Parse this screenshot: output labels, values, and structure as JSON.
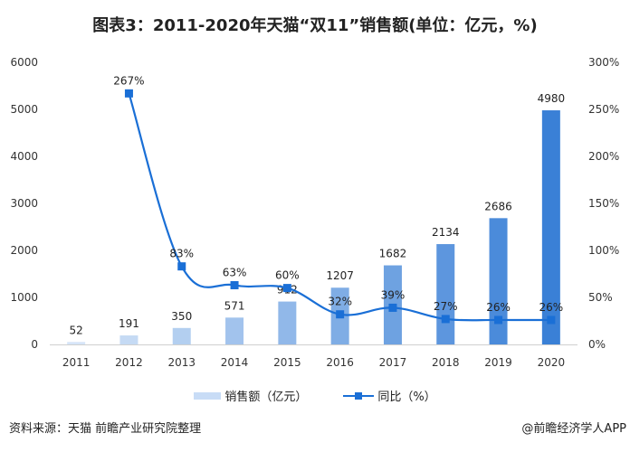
{
  "chart_data": {
    "type": "bar+line",
    "title": "图表3：2011-2020年天猫“双11”销售额(单位：亿元，%)",
    "categories": [
      "2011",
      "2012",
      "2013",
      "2014",
      "2015",
      "2016",
      "2017",
      "2018",
      "2019",
      "2020"
    ],
    "series": [
      {
        "name": "销售额（亿元）",
        "type": "bar",
        "axis": "left",
        "values": [
          52,
          191,
          350,
          571,
          912,
          1207,
          1682,
          2134,
          2686,
          4980
        ],
        "labels": [
          "52",
          "191",
          "350",
          "571",
          "912",
          "1207",
          "1682",
          "2134",
          "2686",
          "4980"
        ]
      },
      {
        "name": "同比（%）",
        "type": "line",
        "axis": "right",
        "values": [
          null,
          267,
          83,
          63,
          60,
          32,
          39,
          27,
          26,
          26
        ],
        "labels": [
          "",
          "267%",
          "83%",
          "63%",
          "60%",
          "32%",
          "39%",
          "27%",
          "26%",
          "26%"
        ]
      }
    ],
    "left_axis": {
      "ylim": [
        0,
        6000
      ],
      "ticks": [
        "0",
        "1000",
        "2000",
        "3000",
        "4000",
        "5000",
        "6000"
      ]
    },
    "right_axis": {
      "ylim": [
        0,
        300
      ],
      "ticks": [
        "0%",
        "50%",
        "100%",
        "150%",
        "200%",
        "250%",
        "300%"
      ]
    },
    "grid": false,
    "legend": "bottom",
    "colors": {
      "bar_light": "#d6e5f8",
      "bar_dark": "#3a80d6",
      "line": "#1a6fd6"
    }
  },
  "legend": {
    "bar_label": "销售额（亿元）",
    "line_label": "同比（%）"
  },
  "footer": {
    "source": "资料来源：天猫 前瞻产业研究院整理",
    "brand": "@前瞻经济学人APP"
  }
}
